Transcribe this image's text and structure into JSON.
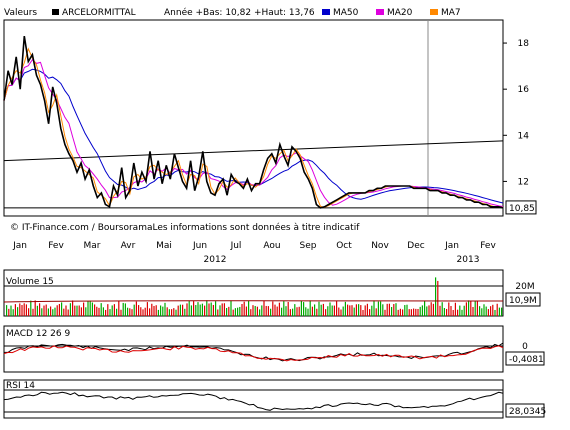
{
  "header": {
    "label": "Valeurs",
    "symbol": "ARCELORMITTAL",
    "range_text": "Année +Bas: 10,82 +Haut: 13,76",
    "legend": [
      {
        "name": "MA50",
        "color": "#0000cc"
      },
      {
        "name": "MA20",
        "color": "#dd00dd"
      },
      {
        "name": "MA7",
        "color": "#ff8800"
      }
    ]
  },
  "copyright": "© IT-Finance.com / BoursoramaLes informations sont données à titre indicatif",
  "months": [
    "Jan",
    "Fev",
    "Mar",
    "Avr",
    "Mai",
    "Jun",
    "Jul",
    "Aou",
    "Sep",
    "Oct",
    "Nov",
    "Dec",
    "Jan",
    "Fev"
  ],
  "years": [
    "2012",
    "2013"
  ],
  "chart_data": [
    {
      "type": "line",
      "name": "price",
      "y_ticks": [
        "18",
        "16",
        "14",
        "12"
      ],
      "ylim": [
        10.5,
        19.0
      ],
      "last_value_label": "10,85",
      "x": [
        0,
        4,
        8,
        12,
        16,
        20,
        24,
        28,
        32,
        36,
        40,
        44,
        48,
        52,
        56,
        60,
        64,
        68,
        72,
        76,
        80,
        84,
        88,
        92,
        96,
        100,
        104,
        108,
        112,
        116,
        120,
        124,
        128,
        132,
        136,
        140,
        144,
        148,
        152,
        156,
        160,
        164,
        168,
        172,
        176,
        180,
        184,
        188,
        192,
        196,
        200,
        204,
        208,
        212,
        216,
        220,
        224,
        228,
        232,
        236,
        240,
        244,
        248,
        252,
        256,
        260,
        264,
        268,
        272,
        276,
        280,
        284,
        288,
        292,
        296,
        300,
        304,
        308,
        312,
        316,
        320,
        324,
        328,
        332,
        336,
        340,
        344,
        348,
        352,
        356,
        360,
        364,
        368,
        372,
        376,
        380,
        384,
        388,
        392,
        396,
        400,
        404,
        408,
        412,
        416,
        420,
        424,
        428,
        432,
        436,
        440,
        444,
        448,
        452,
        456,
        460,
        464,
        468,
        472,
        476,
        480,
        484,
        488,
        492
      ],
      "series": [
        {
          "name": "price",
          "color": "#000000",
          "values": [
            15.5,
            16.8,
            16.2,
            17.4,
            16.0,
            18.3,
            17.2,
            17.5,
            16.6,
            16.2,
            15.5,
            14.5,
            16.1,
            15.4,
            14.3,
            13.6,
            13.2,
            12.9,
            12.4,
            12.8,
            12.1,
            12.5,
            11.8,
            11.3,
            11.5,
            11.0,
            10.9,
            11.8,
            11.4,
            12.6,
            11.3,
            11.6,
            12.8,
            11.8,
            12.4,
            12.0,
            13.3,
            12.1,
            12.9,
            11.9,
            12.7,
            12.1,
            13.2,
            12.6,
            12.0,
            11.7,
            12.9,
            11.6,
            12.2,
            13.3,
            12.0,
            11.5,
            11.4,
            11.9,
            12.1,
            11.4,
            12.3,
            12.0,
            11.9,
            11.7,
            12.1,
            11.6,
            11.9,
            11.9,
            12.5,
            13.0,
            13.2,
            12.8,
            13.6,
            13.1,
            12.7,
            13.5,
            13.3,
            13.0,
            12.4,
            12.1,
            11.7,
            11.0,
            10.85,
            10.9,
            11.0,
            11.1,
            11.2,
            11.3,
            11.4,
            11.5,
            11.5,
            11.5,
            11.5,
            11.5,
            11.6,
            11.6,
            11.7,
            11.7,
            11.8,
            11.8,
            11.8,
            11.8,
            11.8,
            11.8,
            11.8,
            11.7,
            11.7,
            11.7,
            11.7,
            11.6,
            11.6,
            11.6,
            11.5,
            11.5,
            11.4,
            11.4,
            11.3,
            11.3,
            11.2,
            11.2,
            11.1,
            11.1,
            11.0,
            11.0,
            10.9,
            10.9,
            10.9,
            10.85
          ]
        }
      ]
    },
    {
      "type": "bar",
      "name": "volume",
      "label": "Volume 15",
      "y_ticks": [
        "20M"
      ],
      "last_value_label": "10,9M"
    },
    {
      "type": "line",
      "name": "macd",
      "label": "MACD 12 26 9",
      "y_ticks": [
        "0"
      ],
      "last_value_label": "-0,4081"
    },
    {
      "type": "line",
      "name": "rsi",
      "label": "RSI 14",
      "last_value_label": "28,0345"
    }
  ]
}
